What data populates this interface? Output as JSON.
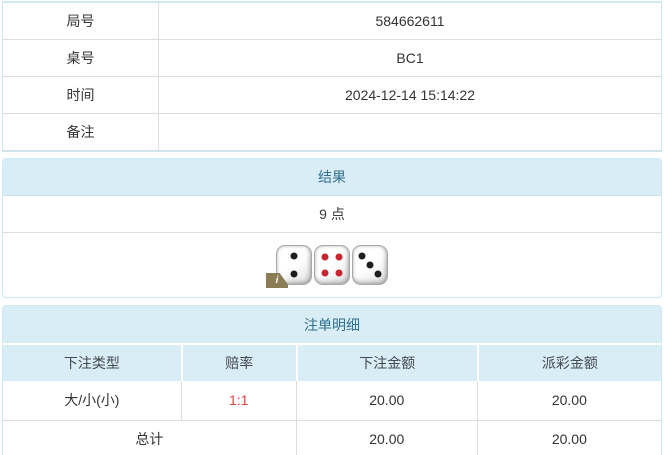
{
  "info_table": {
    "rows": [
      {
        "label": "局号",
        "value": "584662611"
      },
      {
        "label": "桌号",
        "value": "BC1"
      },
      {
        "label": "时间",
        "value": "2024-12-14 15:14:22"
      },
      {
        "label": "备注",
        "value": ""
      }
    ]
  },
  "result_panel": {
    "title": "结果",
    "points": "9 点",
    "dice": [
      {
        "value": 2,
        "pip_color": "#1e1e1e"
      },
      {
        "value": 4,
        "pip_color": "#c82530"
      },
      {
        "value": 3,
        "pip_color": "#1e1e1e"
      }
    ],
    "info_icon_label": "i"
  },
  "bets_panel": {
    "title": "注单明细",
    "columns": [
      "下注类型",
      "赔率",
      "下注金额",
      "派彩金额"
    ],
    "rows": [
      {
        "bet_type": "大/小(小)",
        "odds": "1:1",
        "bet_amount": "20.00",
        "payout_amount": "20.00"
      }
    ],
    "total_row": {
      "label": "总计",
      "bet_amount": "20.00",
      "payout_amount": "20.00"
    }
  },
  "colors": {
    "panel_header_bg": "#d9edf7",
    "panel_header_text": "#31708f",
    "panel_border": "#cde9f3",
    "inner_border": "#dddddd",
    "odds_red": "#e84040",
    "body_text": "#333333"
  }
}
